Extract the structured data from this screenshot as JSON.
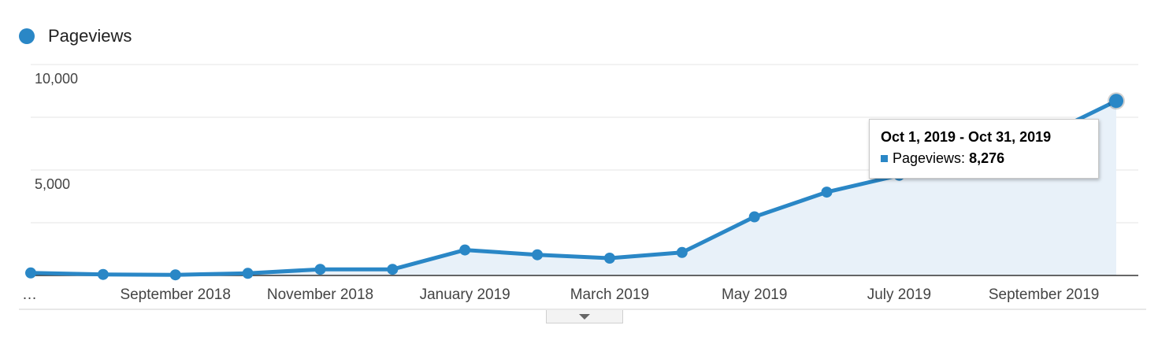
{
  "legend": {
    "label": "Pageviews",
    "color": "#2a87c6"
  },
  "tooltip": {
    "title": "Oct 1, 2019 - Oct 31, 2019",
    "series_label": "Pageviews:",
    "value": "8,276"
  },
  "colors": {
    "line": "#2a87c6",
    "area": "#e8f1f9",
    "grid": "#e6e6e6",
    "baseline": "#333333",
    "axis_text": "#444444"
  },
  "chart_data": {
    "type": "area",
    "series": [
      {
        "name": "Pageviews",
        "x": [
          "Jul 2018",
          "Aug 2018",
          "Sep 2018",
          "Oct 2018",
          "Nov 2018",
          "Dec 2018",
          "Jan 2019",
          "Feb 2019",
          "Mar 2019",
          "Apr 2019",
          "May 2019",
          "Jun 2019",
          "Jul 2019",
          "Aug 2019",
          "Sep 2019",
          "Oct 2019"
        ],
        "values": [
          120,
          50,
          30,
          100,
          290,
          290,
          1210,
          980,
          820,
          1090,
          2780,
          3950,
          4750,
          5600,
          6600,
          8276
        ]
      }
    ],
    "x_tick_labels": [
      {
        "label": "…",
        "index": 0
      },
      {
        "label": "September 2018",
        "index": 2
      },
      {
        "label": "November 2018",
        "index": 4
      },
      {
        "label": "January 2019",
        "index": 6
      },
      {
        "label": "March 2019",
        "index": 8
      },
      {
        "label": "May 2019",
        "index": 10
      },
      {
        "label": "July 2019",
        "index": 12
      },
      {
        "label": "September 2019",
        "index": 14
      }
    ],
    "y_ticks": [
      {
        "value": 10000,
        "label": "10,000"
      },
      {
        "value": 5000,
        "label": "5,000"
      }
    ],
    "y_gridlines": [
      2500,
      5000,
      7500,
      10000
    ],
    "ylim": [
      0,
      10000
    ],
    "grid": true,
    "legend_position": "top-left",
    "highlighted_index": 15
  }
}
